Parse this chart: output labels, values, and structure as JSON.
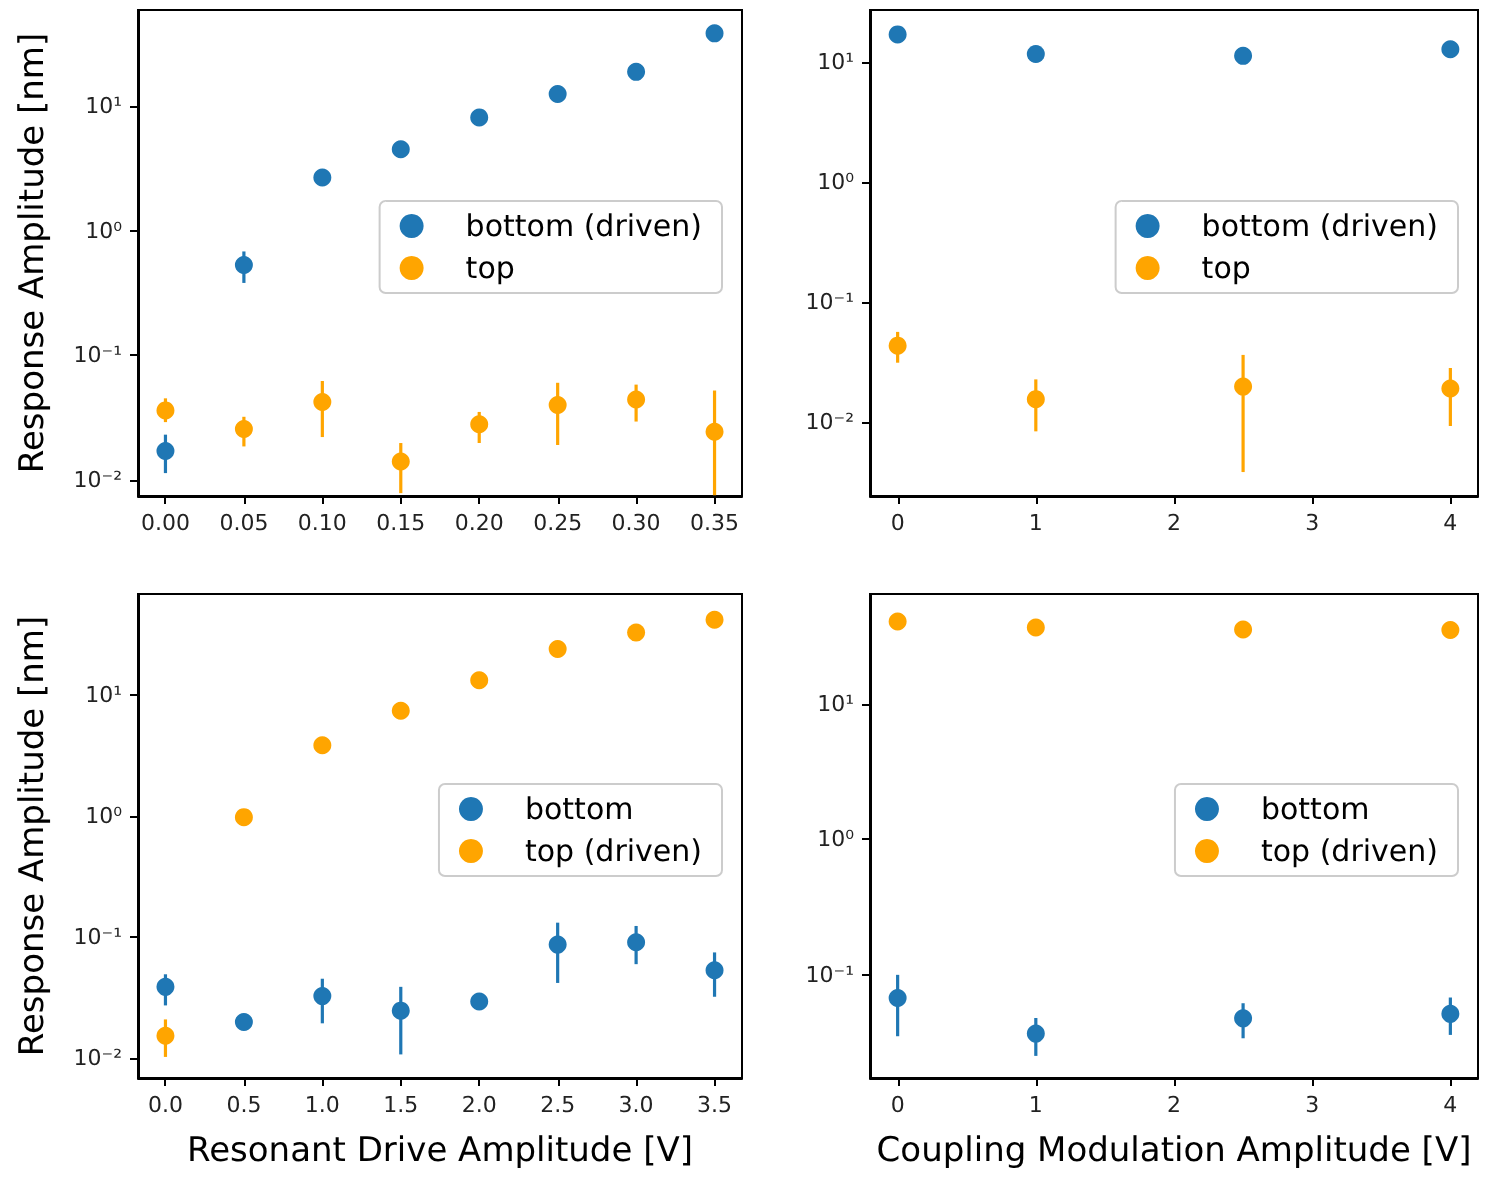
{
  "chart_data": [
    {
      "type": "scatter",
      "ylabel": "Response Amplitude [nm]",
      "log": "y",
      "grid": false,
      "legend": "right",
      "marker": "circle",
      "x": [
        0,
        0.05,
        0.1,
        0.15,
        0.2,
        0.25,
        0.3,
        0.35
      ],
      "xlim": [
        -0.0175,
        0.3675
      ],
      "xticks": [
        {
          "value": 0,
          "label": "0.00"
        },
        {
          "value": 0.05,
          "label": "0.05"
        },
        {
          "value": 0.1,
          "label": "0.10"
        },
        {
          "value": 0.15,
          "label": "0.15"
        },
        {
          "value": 0.2,
          "label": "0.20"
        },
        {
          "value": 0.25,
          "label": "0.25"
        },
        {
          "value": 0.3,
          "label": "0.30"
        },
        {
          "value": 0.35,
          "label": "0.35"
        }
      ],
      "ylim": [
        0.0074,
        59
      ],
      "yticks": [
        {
          "value": 0.01,
          "label": "10⁻²"
        },
        {
          "value": 0.1,
          "label": "10⁻¹"
        },
        {
          "value": 1,
          "label": "10⁰"
        },
        {
          "value": 10,
          "label": "10¹"
        }
      ],
      "series": [
        {
          "name": "bottom (driven)",
          "color": "#1f77b4",
          "values": [
            0.017,
            0.53,
            2.67,
            4.5,
            8.1,
            12.5,
            18.8,
            38.3
          ],
          "errors": [
            [
              0.0113,
              0.023
            ],
            [
              0.38,
              0.68
            ],
            null,
            null,
            null,
            null,
            null,
            null
          ]
        },
        {
          "name": "top",
          "color": "#ffa500",
          "values": [
            0.036,
            0.0255,
            0.042,
            0.014,
            0.0279,
            0.0398,
            0.044,
            0.0243
          ],
          "errors": [
            [
              0.029,
              0.045
            ],
            [
              0.0185,
              0.032
            ],
            [
              0.022,
              0.062
            ],
            [
              0.0078,
              0.0197
            ],
            [
              0.0197,
              0.035
            ],
            [
              0.019,
              0.06
            ],
            [
              0.0293,
              0.058
            ],
            [
              0.0075,
              0.052
            ]
          ]
        }
      ]
    },
    {
      "type": "scatter",
      "log": "y",
      "grid": false,
      "legend": "right",
      "marker": "circle",
      "x": [
        0,
        1,
        2.5,
        4
      ],
      "xlim": [
        -0.2,
        4.2
      ],
      "xticks": [
        0,
        1,
        2,
        3,
        4
      ],
      "ylim": [
        0.0024,
        27
      ],
      "yticks": [
        {
          "value": 0.01,
          "label": "10⁻²"
        },
        {
          "value": 0.1,
          "label": "10⁻¹"
        },
        {
          "value": 1,
          "label": "10⁰"
        },
        {
          "value": 10,
          "label": "10¹"
        }
      ],
      "series": [
        {
          "name": "bottom (driven)",
          "color": "#1f77b4",
          "values": [
            16.9,
            11.6,
            11.2,
            12.7
          ]
        },
        {
          "name": "top",
          "color": "#ffa500",
          "values": [
            0.043,
            0.0154,
            0.0196,
            0.0189
          ],
          "errors": [
            [
              0.031,
              0.056
            ],
            [
              0.0083,
              0.0225
            ],
            [
              0.0038,
              0.036
            ],
            [
              0.0092,
              0.028
            ]
          ]
        }
      ]
    },
    {
      "type": "scatter",
      "xlabel": "Resonant Drive Amplitude [V]",
      "ylabel": "Response Amplitude [nm]",
      "log": "y",
      "grid": false,
      "legend": "right",
      "marker": "circle",
      "x": [
        0,
        0.5,
        1,
        1.5,
        2,
        2.5,
        3,
        3.5
      ],
      "xlim": [
        -0.175,
        3.675
      ],
      "xticks": [
        {
          "value": 0,
          "label": "0.0"
        },
        {
          "value": 0.5,
          "label": "0.5"
        },
        {
          "value": 1,
          "label": "1.0"
        },
        {
          "value": 1.5,
          "label": "1.5"
        },
        {
          "value": 2,
          "label": "2.0"
        },
        {
          "value": 2.5,
          "label": "2.5"
        },
        {
          "value": 3,
          "label": "3.0"
        },
        {
          "value": 3.5,
          "label": "3.5"
        }
      ],
      "ylim": [
        0.0069,
        68
      ],
      "yticks": [
        {
          "value": 0.01,
          "label": "10⁻²"
        },
        {
          "value": 0.1,
          "label": "10⁻¹"
        },
        {
          "value": 1,
          "label": "10⁰"
        },
        {
          "value": 10,
          "label": "10¹"
        }
      ],
      "series": [
        {
          "name": "bottom",
          "color": "#1f77b4",
          "values": [
            0.039,
            0.02,
            0.0327,
            0.0248,
            0.0295,
            0.087,
            0.091,
            0.0535
          ],
          "errors": [
            [
              0.0274,
              0.0495
            ],
            null,
            [
              0.0195,
              0.0455
            ],
            [
              0.0108,
              0.039
            ],
            null,
            [
              0.042,
              0.132
            ],
            [
              0.06,
              0.124
            ],
            [
              0.0323,
              0.075
            ]
          ]
        },
        {
          "name": "top (driven)",
          "color": "#ffa500",
          "values": [
            0.0154,
            0.98,
            3.84,
            7.4,
            13.2,
            23.9,
            32.7,
            41.7
          ],
          "errors": [
            [
              0.0103,
              0.021
            ],
            null,
            null,
            null,
            null,
            null,
            null,
            null
          ]
        }
      ]
    },
    {
      "type": "scatter",
      "xlabel": "Coupling Modulation Amplitude [V]",
      "log": "y",
      "grid": false,
      "legend": "right",
      "marker": "circle",
      "x": [
        0,
        1,
        2.5,
        4
      ],
      "xlim": [
        -0.2,
        4.2
      ],
      "xticks": [
        0,
        1,
        2,
        3,
        4
      ],
      "ylim": [
        0.0173,
        65
      ],
      "yticks": [
        {
          "value": 0.1,
          "label": "10⁻¹"
        },
        {
          "value": 1,
          "label": "10⁰"
        },
        {
          "value": 10,
          "label": "10¹"
        }
      ],
      "series": [
        {
          "name": "bottom",
          "color": "#1f77b4",
          "values": [
            0.0675,
            0.0368,
            0.0477,
            0.0515
          ],
          "errors": [
            [
              0.0352,
              0.1
            ],
            [
              0.0252,
              0.048
            ],
            [
              0.034,
              0.0617
            ],
            [
              0.036,
              0.068
            ]
          ]
        },
        {
          "name": "top (driven)",
          "color": "#ffa500",
          "values": [
            40.7,
            36.8,
            35.5,
            35.2
          ]
        }
      ]
    }
  ]
}
